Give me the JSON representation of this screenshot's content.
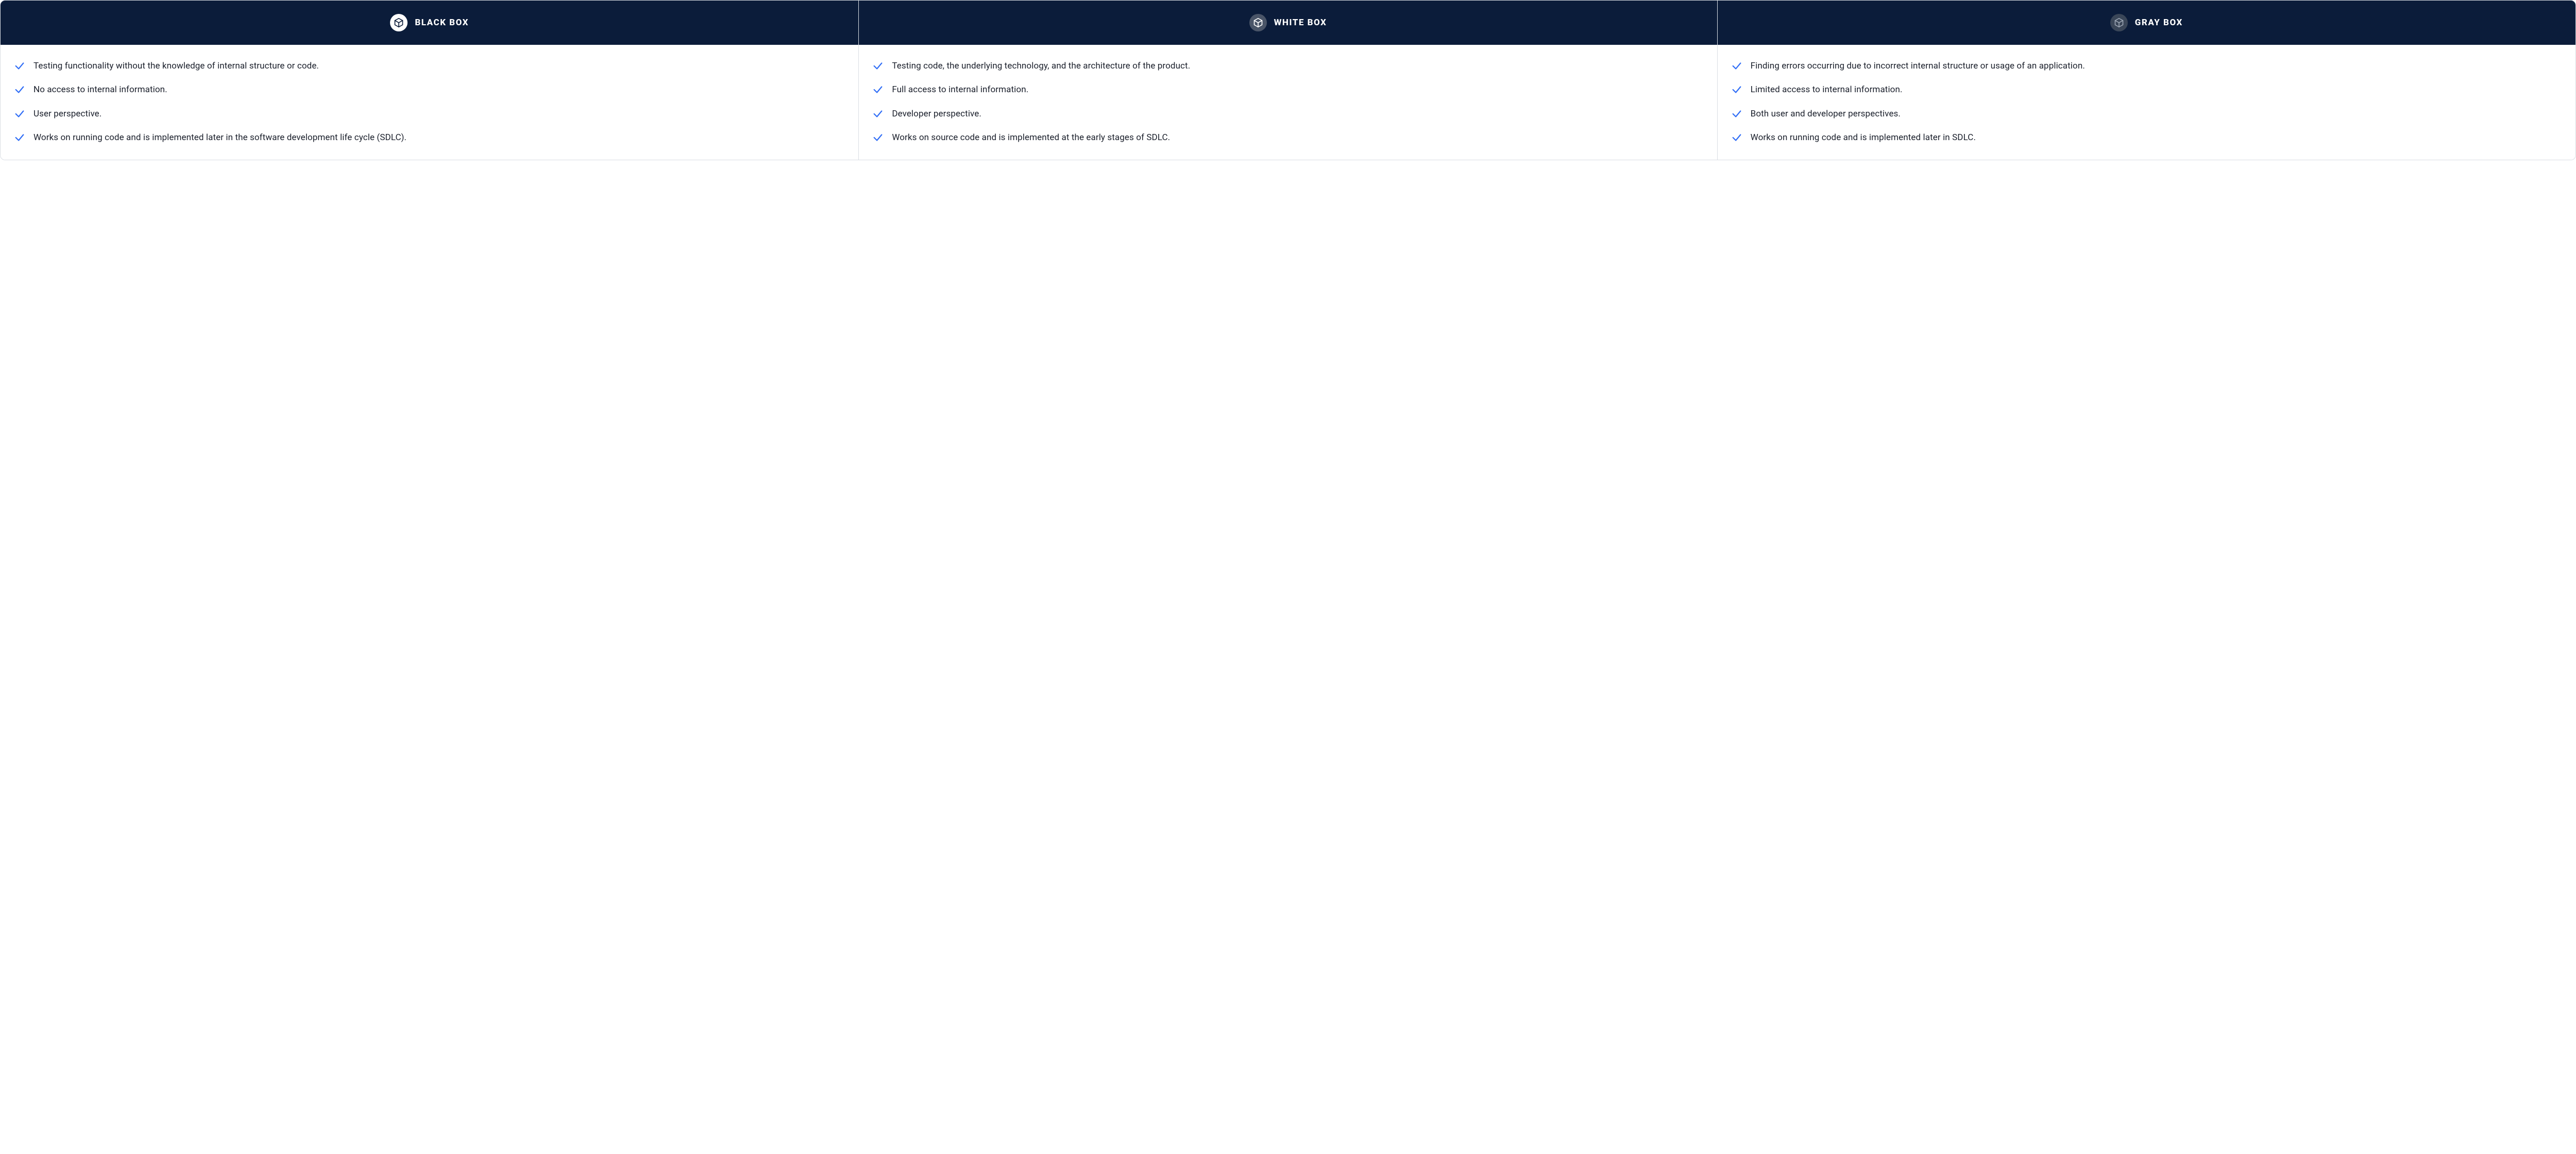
{
  "layout": {
    "columns": 3,
    "header_bg": "#0b1c3a",
    "header_text_color": "#ffffff",
    "body_bg": "#ffffff",
    "border_color": "#d9dde3",
    "check_color": "#2f6df6",
    "item_text_color": "#1a1f2b",
    "header_font_size": 17,
    "item_font_size": 17
  },
  "columns": [
    {
      "id": "black-box",
      "title": "BLACK BOX",
      "icon": {
        "badge_bg": "#ffffff",
        "cube_color": "#0b1c3a"
      },
      "items": [
        "Testing functionality without the knowledge of internal structure or code.",
        "No access to internal information.",
        "User perspective.",
        "Works on running code and is implemented later in the software development life cycle (SDLC)."
      ]
    },
    {
      "id": "white-box",
      "title": "WHITE BOX",
      "icon": {
        "badge_bg": "#4a5568",
        "cube_color": "#ffffff"
      },
      "items": [
        "Testing code, the underlying technology, and the architecture of the product.",
        "Full access to internal information.",
        "Developer perspective.",
        "Works on source code and is implemented at the early stages of SDLC."
      ]
    },
    {
      "id": "gray-box",
      "title": "GRAY BOX",
      "icon": {
        "badge_bg": "#3a4658",
        "cube_color": "#9aa4b2"
      },
      "items": [
        "Finding errors occurring due to incorrect internal structure or usage of an application.",
        "Limited access to internal information.",
        "Both user and developer perspectives.",
        "Works on running code and is implemented later in SDLC."
      ]
    }
  ]
}
